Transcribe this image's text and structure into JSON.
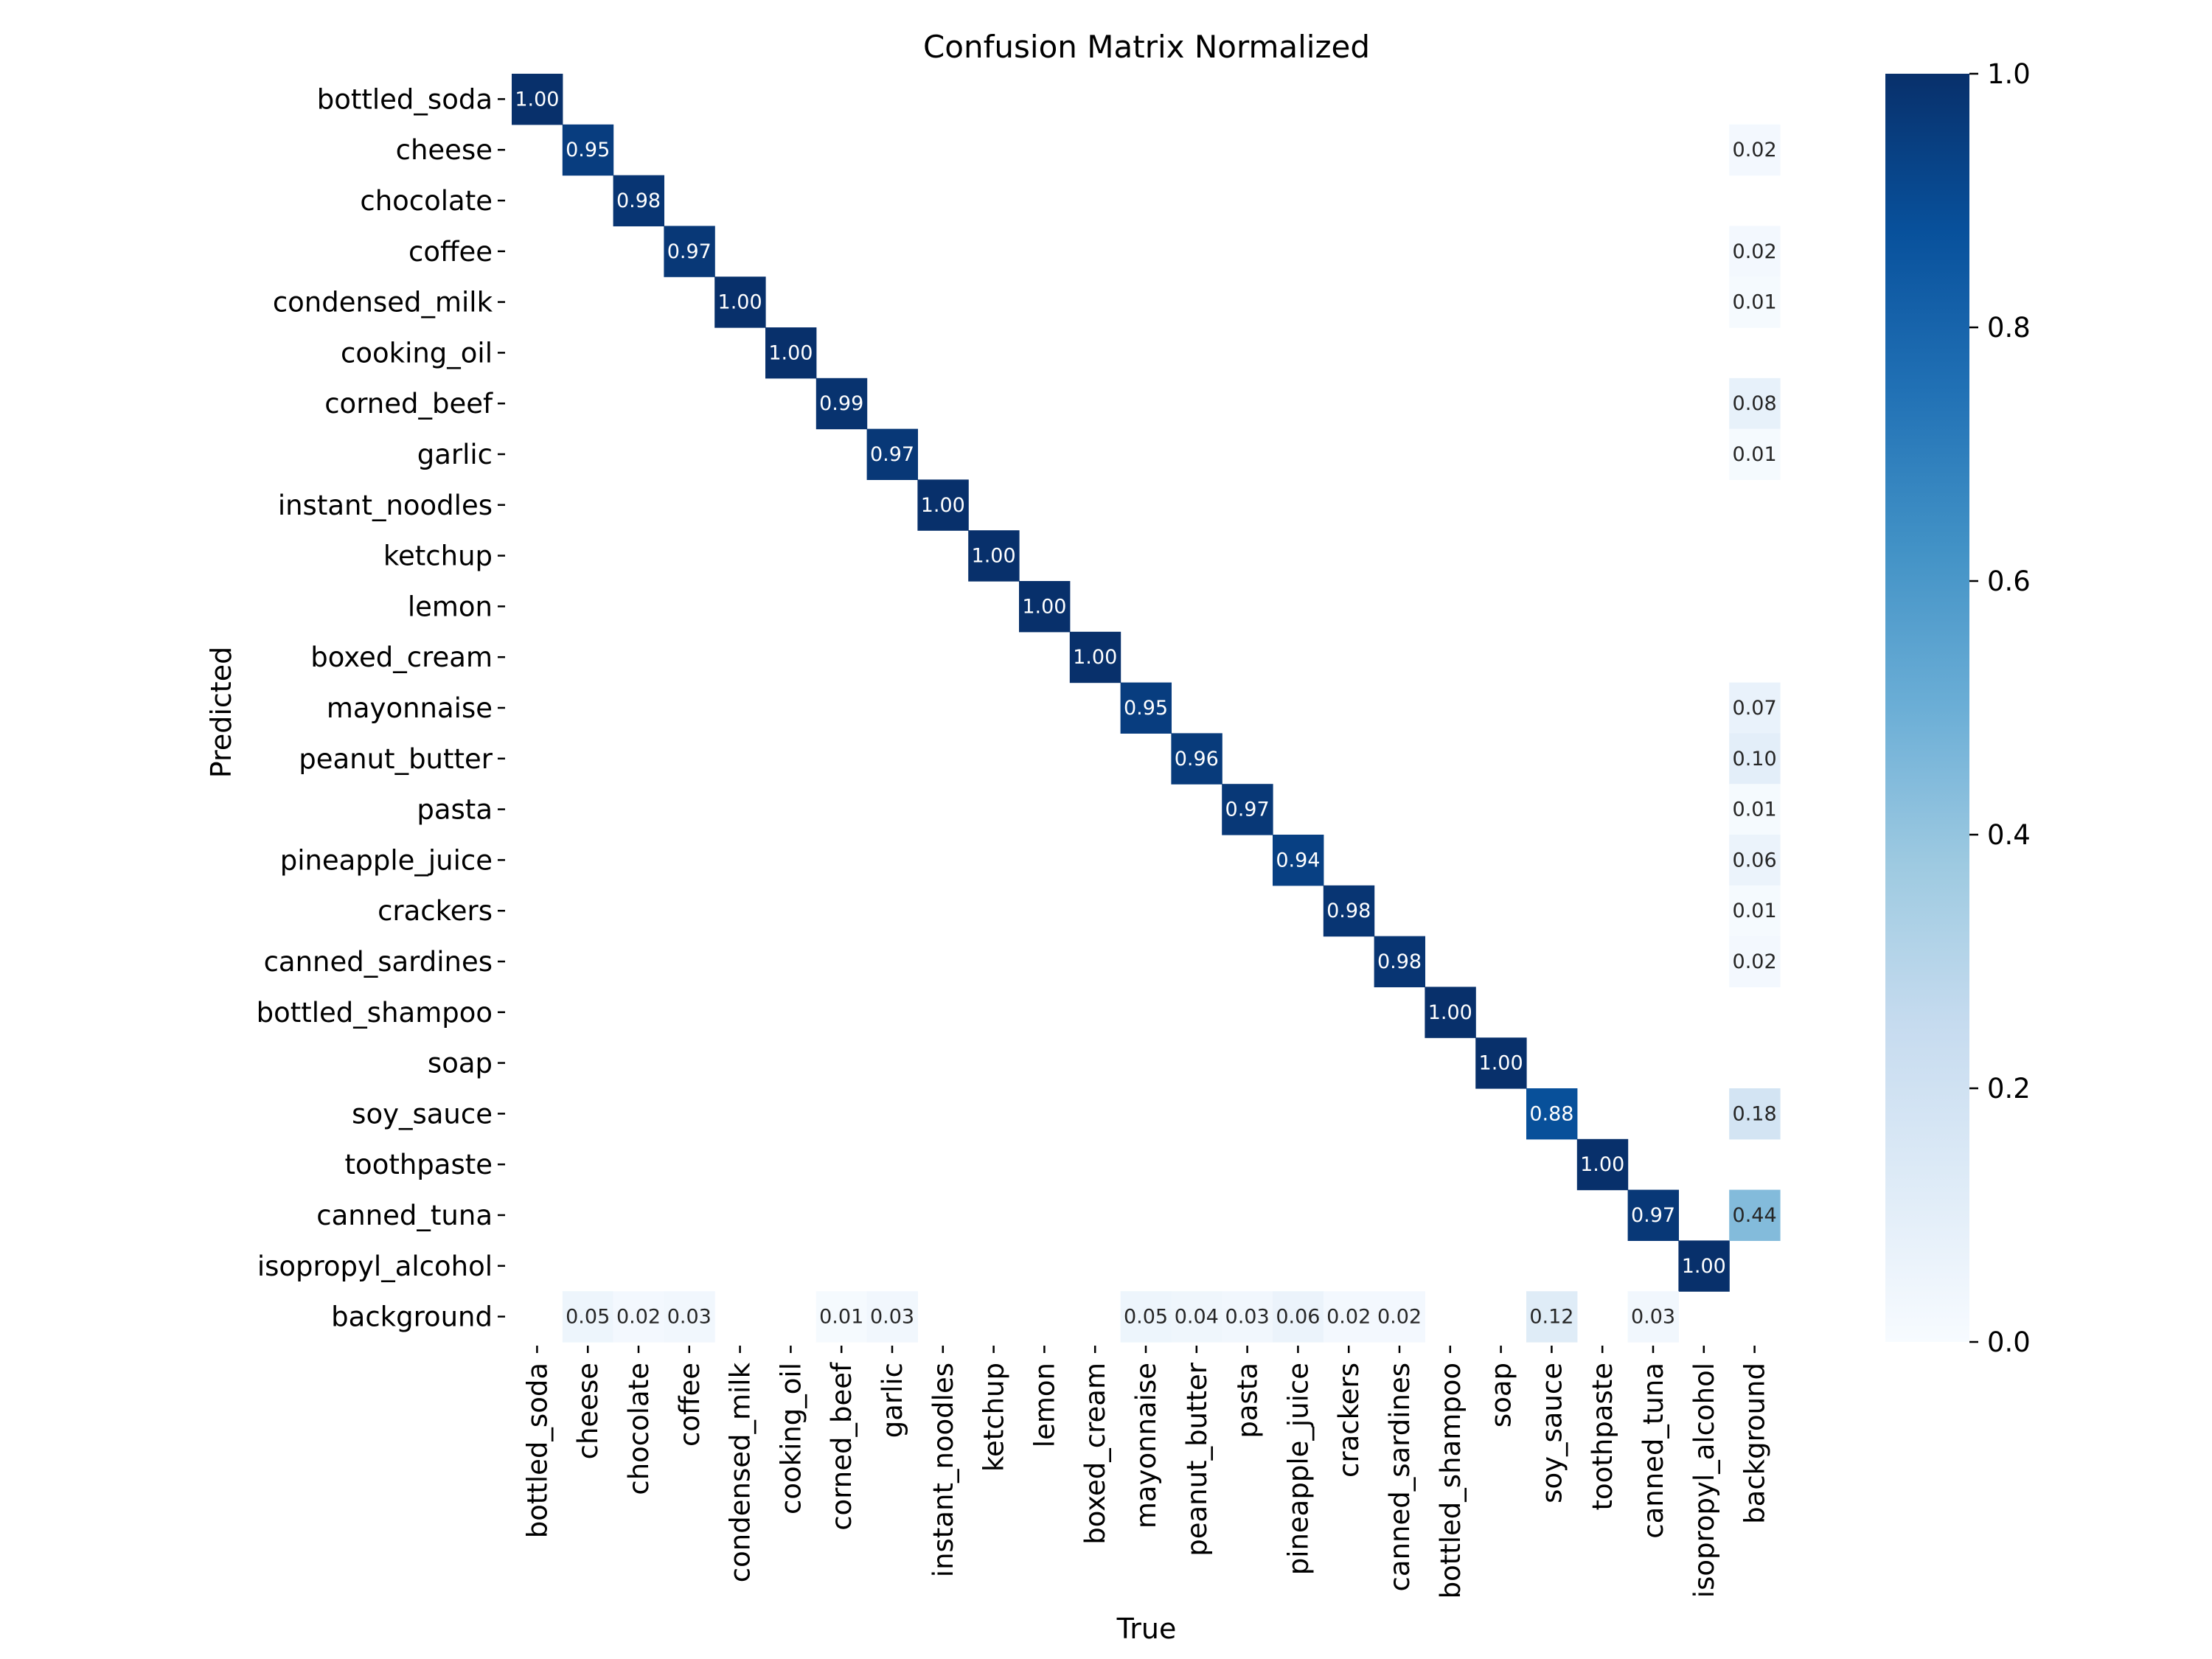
{
  "chart_data": {
    "type": "heatmap",
    "title": "Confusion Matrix Normalized",
    "xlabel": "True",
    "ylabel": "Predicted",
    "colormap": "Blues",
    "colorbar": {
      "range": [
        0,
        1
      ],
      "ticks": [
        "0.0",
        "0.2",
        "0.4",
        "0.6",
        "0.8",
        "1.0"
      ]
    },
    "labels": [
      "bottled_soda",
      "cheese",
      "chocolate",
      "coffee",
      "condensed_milk",
      "cooking_oil",
      "corned_beef",
      "garlic",
      "instant_noodles",
      "ketchup",
      "lemon",
      "boxed_cream",
      "mayonnaise",
      "peanut_butter",
      "pasta",
      "pineapple_juice",
      "crackers",
      "canned_sardines",
      "bottled_shampoo",
      "soap",
      "soy_sauce",
      "toothpaste",
      "canned_tuna",
      "isopropyl_alcohol",
      "background"
    ],
    "cells": [
      [
        0,
        0,
        1.0
      ],
      [
        1,
        1,
        0.95
      ],
      [
        2,
        2,
        0.98
      ],
      [
        3,
        3,
        0.97
      ],
      [
        4,
        4,
        1.0
      ],
      [
        5,
        5,
        1.0
      ],
      [
        6,
        6,
        0.99
      ],
      [
        7,
        7,
        0.97
      ],
      [
        8,
        8,
        1.0
      ],
      [
        9,
        9,
        1.0
      ],
      [
        10,
        10,
        1.0
      ],
      [
        11,
        11,
        1.0
      ],
      [
        12,
        12,
        0.95
      ],
      [
        13,
        13,
        0.96
      ],
      [
        14,
        14,
        0.97
      ],
      [
        15,
        15,
        0.94
      ],
      [
        16,
        16,
        0.98
      ],
      [
        17,
        17,
        0.98
      ],
      [
        18,
        18,
        1.0
      ],
      [
        19,
        19,
        1.0
      ],
      [
        20,
        20,
        0.88
      ],
      [
        21,
        21,
        1.0
      ],
      [
        22,
        22,
        0.97
      ],
      [
        23,
        23,
        1.0
      ],
      [
        1,
        24,
        0.02
      ],
      [
        3,
        24,
        0.02
      ],
      [
        4,
        24,
        0.01
      ],
      [
        6,
        24,
        0.08
      ],
      [
        7,
        24,
        0.01
      ],
      [
        12,
        24,
        0.07
      ],
      [
        13,
        24,
        0.1
      ],
      [
        14,
        24,
        0.01
      ],
      [
        15,
        24,
        0.06
      ],
      [
        16,
        24,
        0.01
      ],
      [
        17,
        24,
        0.02
      ],
      [
        20,
        24,
        0.18
      ],
      [
        22,
        24,
        0.44
      ],
      [
        24,
        1,
        0.05
      ],
      [
        24,
        2,
        0.02
      ],
      [
        24,
        3,
        0.03
      ],
      [
        24,
        6,
        0.01
      ],
      [
        24,
        7,
        0.03
      ],
      [
        24,
        12,
        0.05
      ],
      [
        24,
        13,
        0.04
      ],
      [
        24,
        14,
        0.03
      ],
      [
        24,
        15,
        0.06
      ],
      [
        24,
        16,
        0.02
      ],
      [
        24,
        17,
        0.02
      ],
      [
        24,
        20,
        0.12
      ],
      [
        24,
        22,
        0.03
      ]
    ]
  }
}
